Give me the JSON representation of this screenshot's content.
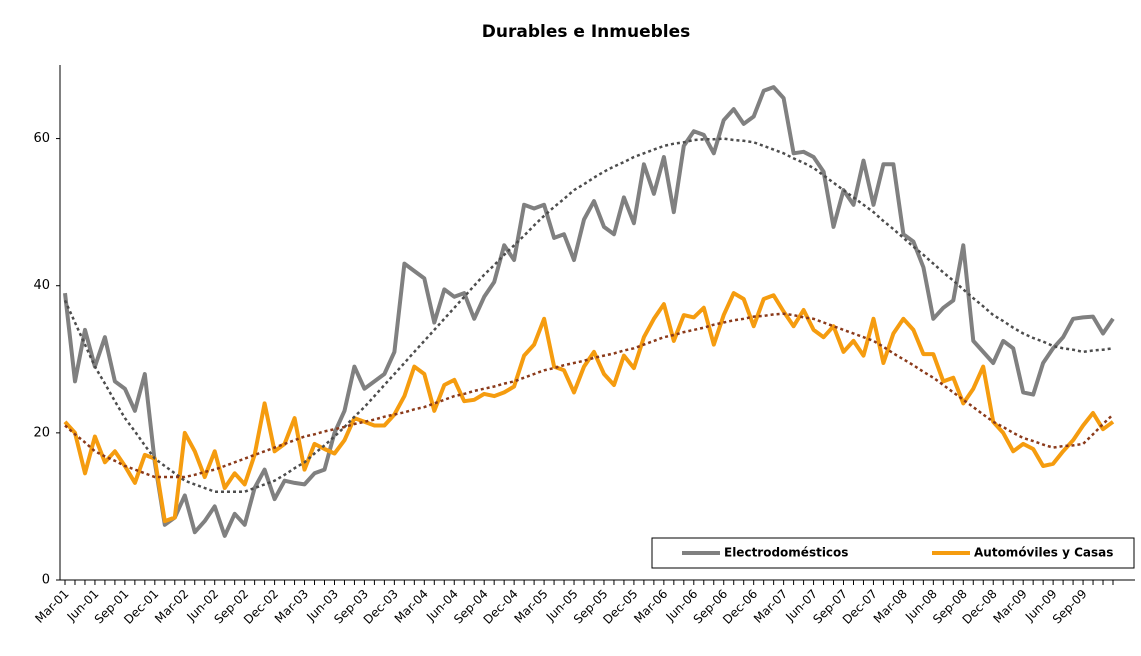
{
  "chart_data": {
    "type": "line",
    "title": "Durables e Inmuebles",
    "categories": [
      "Mar-01",
      null,
      null,
      "Jun-01",
      null,
      null,
      "Sep-01",
      null,
      null,
      "Dec-01",
      null,
      null,
      "Mar-02",
      null,
      null,
      "Jun-02",
      null,
      null,
      "Sep-02",
      null,
      null,
      "Dec-02",
      null,
      null,
      "Mar-03",
      null,
      null,
      "Jun-03",
      null,
      null,
      "Sep-03",
      null,
      null,
      "Dec-03",
      null,
      null,
      "Mar-04",
      null,
      null,
      "Jun-04",
      null,
      null,
      "Sep-04",
      null,
      null,
      "Dec-04",
      null,
      null,
      "Mar-05",
      null,
      null,
      "Jun-05",
      null,
      null,
      "Sep-05",
      null,
      null,
      "Dec-05",
      null,
      null,
      "Mar-06",
      null,
      null,
      "Jun-06",
      null,
      null,
      "Sep-06",
      null,
      null,
      "Dec-06",
      null,
      null,
      "Mar-07",
      null,
      null,
      "Jun-07",
      null,
      null,
      "Sep-07",
      null,
      null,
      "Dec-07",
      null,
      null,
      "Mar-08",
      null,
      null,
      "Jun-08",
      null,
      null,
      "Sep-08",
      null,
      null,
      "Dec-08",
      null,
      null,
      "Mar-09",
      null,
      null,
      "Jun-09",
      null,
      null,
      "Sep-09",
      null,
      null,
      null
    ],
    "series": [
      {
        "name": "Electrodomésticos",
        "color": "#808080",
        "values": [
          39,
          27,
          34,
          29,
          33,
          27,
          26,
          23,
          28,
          16,
          7.5,
          8.5,
          11.5,
          6.5,
          8,
          10,
          6,
          9,
          7.5,
          12.5,
          15,
          11,
          13.5,
          13.2,
          13,
          14.5,
          15,
          20,
          23,
          29,
          26,
          27,
          28,
          31,
          43,
          42,
          41,
          35,
          39.5,
          38.5,
          39,
          35.5,
          38.5,
          40.5,
          45.5,
          43.5,
          51,
          50.5,
          51,
          46.5,
          47,
          43.5,
          49,
          51.5,
          48,
          47,
          52,
          48.5,
          56.5,
          52.5,
          57.5,
          50,
          59,
          61,
          60.5,
          58,
          62.5,
          64,
          62,
          63,
          66.5,
          67,
          65.5,
          58,
          58.2,
          57.5,
          55.5,
          48,
          53,
          51,
          57,
          51,
          56.5,
          56.5,
          47,
          46,
          42.5,
          35.5,
          37,
          38,
          45.5,
          32.5,
          31,
          29.5,
          32.5,
          31.5,
          25.5,
          25.2,
          29.5,
          31.5,
          33,
          35.5,
          35.7,
          35.8,
          33.5,
          35.5
        ]
      },
      {
        "name": "Automóviles y Casas",
        "color": "#f59c0f",
        "values": [
          21.5,
          20,
          14.5,
          19.5,
          16,
          17.5,
          15.5,
          13.2,
          17,
          16.5,
          8,
          8.5,
          20,
          17.5,
          14,
          17.5,
          12.5,
          14.5,
          13,
          17,
          24,
          17.5,
          18.5,
          22,
          15,
          18.5,
          17.8,
          17.2,
          19,
          22,
          21.5,
          21,
          21,
          22.5,
          25,
          29,
          28,
          23,
          26.5,
          27.2,
          24.3,
          24.5,
          25.3,
          25,
          25.5,
          26.3,
          30.5,
          32,
          35.5,
          29,
          28.5,
          25.5,
          29,
          31,
          28,
          26.5,
          30.5,
          28.8,
          33,
          35.5,
          37.5,
          32.5,
          36,
          35.7,
          37,
          32,
          36,
          39,
          38.2,
          34.5,
          38.2,
          38.7,
          36.5,
          34.5,
          36.7,
          34,
          33,
          34.5,
          31,
          32.5,
          30.5,
          35.5,
          29.5,
          33.5,
          35.5,
          34,
          30.7,
          30.7,
          27,
          27.5,
          24,
          26,
          29,
          21.5,
          20,
          17.5,
          18.5,
          17.8,
          15.5,
          15.8,
          17.5,
          19,
          21,
          22.7,
          20.5,
          21.5
        ]
      }
    ],
    "trendlines": [
      {
        "color": "#4d4d4d",
        "values": [
          38,
          35,
          32,
          29,
          26.7,
          24.3,
          22,
          20.2,
          18.3,
          16.5,
          15.5,
          14.5,
          13.5,
          13,
          12.5,
          12,
          12,
          12,
          12,
          12.5,
          13,
          13.5,
          14.3,
          15.2,
          16,
          17.2,
          18.3,
          19.5,
          20.8,
          22.2,
          23.5,
          25,
          26.5,
          28,
          29.5,
          31,
          32.5,
          34,
          35.5,
          37,
          38.5,
          40,
          41.5,
          42.8,
          44.2,
          45.5,
          46.8,
          48.2,
          49.5,
          50.7,
          51.8,
          53,
          53.8,
          54.7,
          55.5,
          56.2,
          56.8,
          57.5,
          58,
          58.5,
          59,
          59.3,
          59.5,
          59.8,
          59.9,
          59.9,
          60,
          59.8,
          59.7,
          59.5,
          59,
          58.5,
          58,
          57.3,
          56.7,
          56,
          55,
          54,
          53,
          52,
          51,
          50,
          48.8,
          47.7,
          46.5,
          45.3,
          44.2,
          43,
          41.8,
          40.7,
          39.5,
          38.3,
          37.2,
          36,
          35.2,
          34.3,
          33.5,
          32.9,
          32.4,
          31.8,
          31.5,
          31.3,
          31,
          31.2,
          31.3,
          31.5
        ]
      },
      {
        "color": "#8b3a1a",
        "values": [
          21,
          19.8,
          18.7,
          17.5,
          16.8,
          16.2,
          15.5,
          15,
          14.5,
          14,
          14,
          14,
          14,
          14.3,
          14.7,
          15,
          15.5,
          16,
          16.5,
          17,
          17.5,
          18,
          18.5,
          19,
          19.5,
          19.8,
          20.2,
          20.5,
          20.8,
          21.2,
          21.5,
          21.8,
          22.2,
          22.5,
          22.8,
          23.2,
          23.5,
          24,
          24.5,
          25,
          25.3,
          25.7,
          26,
          26.3,
          26.7,
          27,
          27.5,
          28,
          28.5,
          28.8,
          29.2,
          29.5,
          29.8,
          30.2,
          30.5,
          30.8,
          31.2,
          31.5,
          32,
          32.5,
          33,
          33.3,
          33.7,
          34,
          34.3,
          34.7,
          35,
          35.3,
          35.5,
          35.8,
          35.9,
          36.1,
          36.2,
          36,
          35.7,
          35.5,
          35,
          34.5,
          34,
          33.5,
          33,
          32.5,
          31.7,
          30.8,
          30,
          29.2,
          28.3,
          27.5,
          26.5,
          25.5,
          24.5,
          23.5,
          22.5,
          21.5,
          20.8,
          20,
          19.3,
          18.9,
          18.4,
          18,
          18.2,
          18.3,
          18.5,
          19.8,
          21.2,
          22.5
        ]
      }
    ],
    "ylim": [
      0,
      70
    ],
    "yticks": [
      0,
      20,
      40,
      60
    ],
    "grid": false,
    "legend": "bottom-right"
  }
}
